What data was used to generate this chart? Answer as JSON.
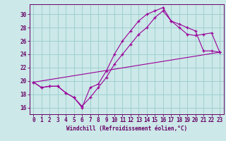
{
  "xlabel": "Windchill (Refroidissement éolien,°C)",
  "bg_color": "#cce8e8",
  "line_color": "#990099",
  "grid_color": "#99cccc",
  "axis_color": "#660066",
  "tick_color": "#660066",
  "xlim": [
    -0.5,
    23.5
  ],
  "ylim": [
    15.0,
    31.5
  ],
  "xticks": [
    0,
    1,
    2,
    3,
    4,
    5,
    6,
    7,
    8,
    9,
    10,
    11,
    12,
    13,
    14,
    15,
    16,
    17,
    18,
    19,
    20,
    21,
    22,
    23
  ],
  "yticks": [
    16,
    18,
    20,
    22,
    24,
    26,
    28,
    30
  ],
  "line1_x": [
    0,
    1,
    2,
    3,
    4,
    5,
    6,
    7,
    8,
    9,
    10,
    11,
    12,
    13,
    14,
    15,
    16,
    17,
    18,
    19,
    20,
    21,
    22,
    23
  ],
  "line1_y": [
    19.8,
    19.0,
    19.2,
    19.2,
    18.2,
    17.5,
    16.0,
    19.0,
    19.5,
    21.5,
    24.0,
    26.0,
    27.5,
    29.0,
    30.0,
    30.5,
    31.0,
    29.0,
    28.5,
    28.0,
    27.5,
    24.5,
    24.5,
    24.3
  ],
  "line2_x": [
    0,
    1,
    2,
    3,
    4,
    5,
    6,
    7,
    8,
    9,
    10,
    11,
    12,
    13,
    14,
    15,
    16,
    17,
    18,
    19,
    20,
    21,
    22,
    23
  ],
  "line2_y": [
    19.8,
    19.0,
    19.2,
    19.2,
    18.2,
    17.5,
    16.2,
    17.5,
    19.0,
    20.5,
    22.5,
    24.0,
    25.5,
    27.0,
    28.0,
    29.5,
    30.5,
    29.0,
    28.0,
    27.0,
    26.8,
    27.0,
    27.2,
    24.3
  ],
  "line3_x": [
    0,
    23
  ],
  "line3_y": [
    19.8,
    24.3
  ],
  "tick_fontsize": 5.5,
  "xlabel_fontsize": 5.5,
  "marker_size": 3.0,
  "linewidth": 0.8
}
